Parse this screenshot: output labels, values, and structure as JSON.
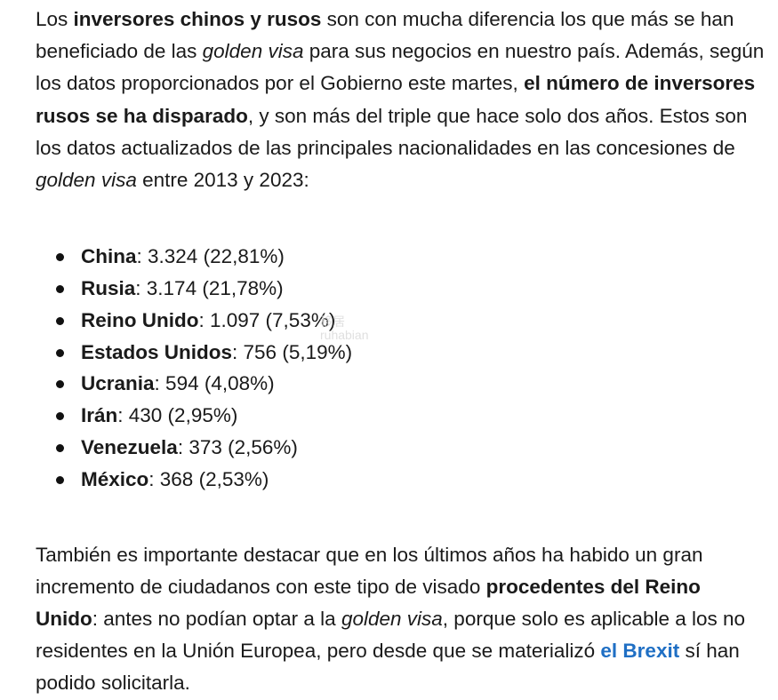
{
  "paragraph1": {
    "t1": "Los ",
    "b1": "inversores chinos y rusos",
    "t2": " son con mucha diferencia los que más se han beneficiado de las ",
    "i1": "golden visa",
    "t3": " para sus negocios en nuestro país. Además, según los datos proporcionados por el Gobierno este martes, ",
    "b2": "el número de inversores rusos se ha disparado",
    "t4": ", y son más del triple que hace solo dos años. Estos son los datos actualizados de las principales nacionalidades en las concesiones de ",
    "i2": "golden visa",
    "t5": " entre 2013 y 2023:"
  },
  "list": [
    {
      "country": "China",
      "value": ": 3.324 (22,81%)"
    },
    {
      "country": "Rusia",
      "value": ": 3.174 (21,78%)"
    },
    {
      "country": "Reino Unido",
      "value": ": 1.097 (7,53%)"
    },
    {
      "country": "Estados Unidos",
      "value": ": 756 (5,19%)"
    },
    {
      "country": "Ucrania",
      "value": ": 594 (4,08%)"
    },
    {
      "country": "Irán",
      "value": ": 430 (2,95%)"
    },
    {
      "country": "Venezuela",
      "value": ": 373 (2,56%)"
    },
    {
      "country": "México",
      "value": ": 368 (2,53%)"
    }
  ],
  "paragraph2": {
    "t1": "También es importante destacar que en los últimos años ha habido un gran incremento de ciudadanos con este tipo de visado ",
    "b1": "procedentes del Reino Unido",
    "t2": ": antes no podían optar a la ",
    "i1": "golden visa",
    "t3": ", porque solo es aplicable a los no residentes en la Unión Europea, pero desde que se materializó ",
    "link": "el Brexit",
    "t4": " sí han podido solicitarla."
  },
  "watermark": {
    "line1": "移居",
    "line2": "ruhabian"
  }
}
